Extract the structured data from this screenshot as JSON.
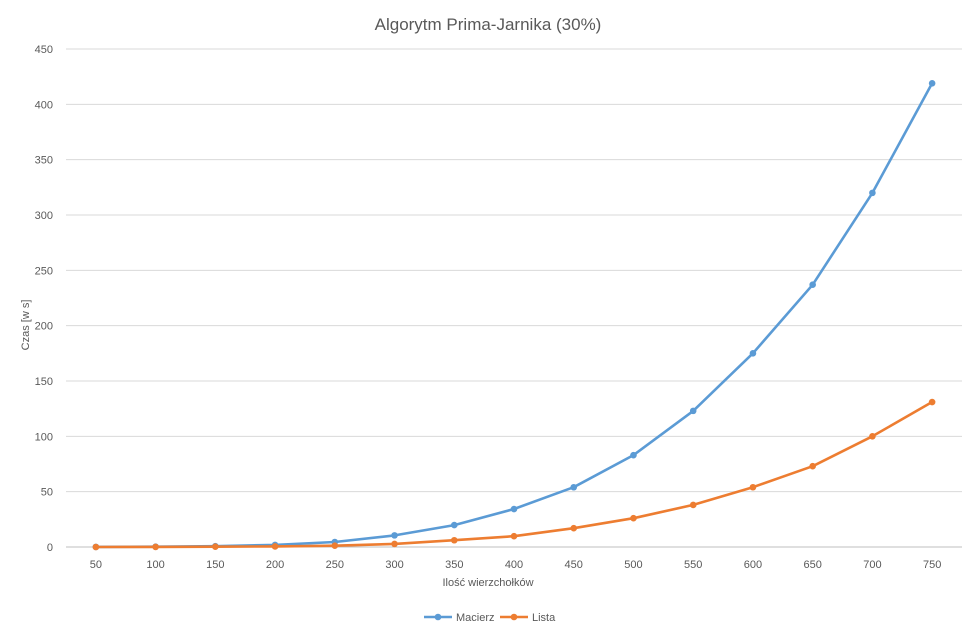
{
  "chart_data": {
    "type": "line",
    "title": "Algorytm Prima-Jarnika (30%)",
    "xlabel": "Ilość wierzchołków",
    "ylabel": "Czas [w s]",
    "categories": [
      "50",
      "100",
      "150",
      "200",
      "250",
      "300",
      "350",
      "400",
      "450",
      "500",
      "550",
      "600",
      "650",
      "700",
      "750"
    ],
    "ylim": [
      0,
      450
    ],
    "yticks": [
      0,
      50,
      100,
      150,
      200,
      250,
      300,
      350,
      400,
      450
    ],
    "grid": true,
    "legend": "bottom",
    "series": [
      {
        "name": "Macierz",
        "color": "#5b9bd5",
        "values": [
          0.1,
          0.3,
          0.7,
          1.9,
          4.5,
          10.5,
          19.8,
          34.3,
          54.0,
          83.0,
          123.0,
          175.0,
          237.0,
          320.0,
          419.0
        ]
      },
      {
        "name": "Lista",
        "color": "#ed7d31",
        "values": [
          0.0,
          0.1,
          0.3,
          0.5,
          1.2,
          2.8,
          6.1,
          9.8,
          17.0,
          26.0,
          38.0,
          54.0,
          73.0,
          100.0,
          131.0
        ]
      }
    ]
  }
}
